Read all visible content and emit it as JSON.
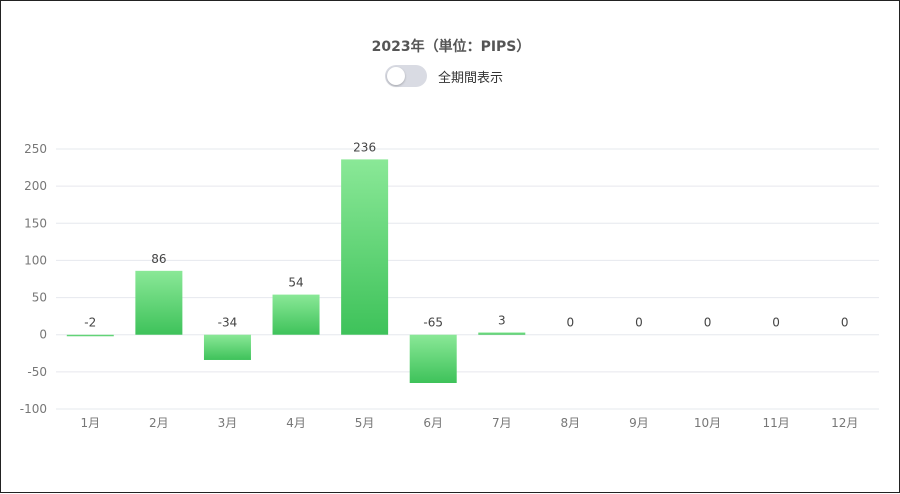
{
  "header": {
    "title": "2023年（単位：PIPS）",
    "toggle_label": "全期間表示",
    "toggle_on": false
  },
  "colors": {
    "bar_top": "#8ae897",
    "bar_bottom": "#3ec25a",
    "grid": "#e6e8ee",
    "axis_text": "#777777",
    "label_text": "#444444"
  },
  "chart_data": {
    "type": "bar",
    "categories": [
      "1月",
      "2月",
      "3月",
      "4月",
      "5月",
      "6月",
      "7月",
      "8月",
      "9月",
      "10月",
      "11月",
      "12月"
    ],
    "values": [
      -2,
      86,
      -34,
      54,
      236,
      -65,
      3,
      0,
      0,
      0,
      0,
      0
    ],
    "ylim": [
      -100,
      250
    ],
    "yticks": [
      -100,
      -50,
      0,
      50,
      100,
      150,
      200,
      250
    ],
    "grid": true,
    "data_labels": true
  }
}
